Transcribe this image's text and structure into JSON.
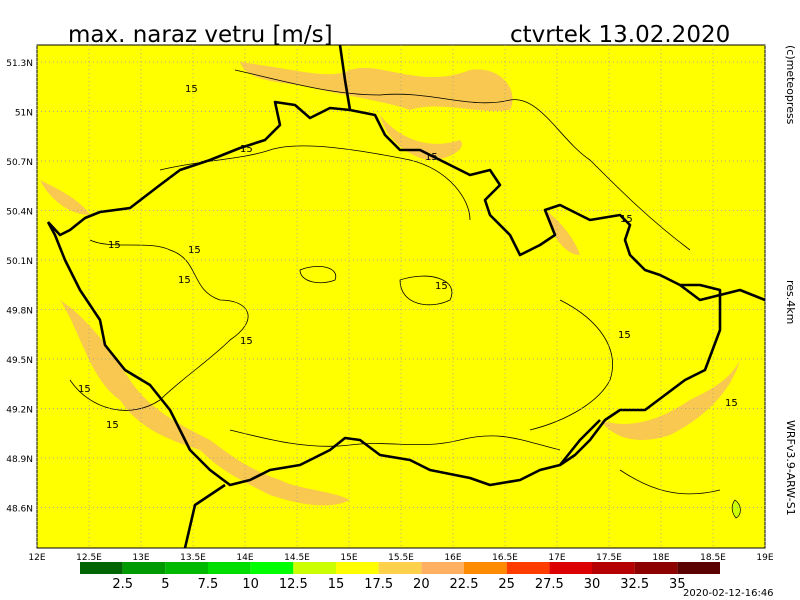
{
  "header": {
    "title": "max. naraz vetru [m/s]",
    "date": "ctvrtek 13.02.2020"
  },
  "side_labels": {
    "copyright": "(c)meteopress",
    "resolution": "res.4km",
    "model": "WRFv3.9-ARW-S1"
  },
  "axes": {
    "lat_labels": [
      "51.3N",
      "51N",
      "50.7N",
      "50.4N",
      "50.1N",
      "49.8N",
      "49.5N",
      "49.2N",
      "48.9N",
      "48.6N"
    ],
    "lon_labels": [
      "12E",
      "12.5E",
      "13E",
      "13.5E",
      "14E",
      "14.5E",
      "15E",
      "15.5E",
      "16E",
      "16.5E",
      "17E",
      "17.5E",
      "18E",
      "18.5E",
      "19E"
    ]
  },
  "contour_labels": [
    "15",
    "15",
    "15",
    "15",
    "15",
    "15",
    "15",
    "15",
    "15",
    "15",
    "15",
    "15",
    "15"
  ],
  "colorbar": {
    "labels": [
      "2.5",
      "5",
      "7.5",
      "10",
      "12.5",
      "15",
      "17.5",
      "20",
      "22.5",
      "25",
      "27.5",
      "30",
      "32.5",
      "35"
    ],
    "colors": [
      "#006400",
      "#009a00",
      "#00b900",
      "#00dd00",
      "#00ff00",
      "#ccff00",
      "#ffff00",
      "#ffd04a",
      "#ffb060",
      "#ff8c00",
      "#ff3c00",
      "#dc0000",
      "#b40000",
      "#8c0000",
      "#5a0000"
    ]
  },
  "timestamp": "2020-02-12-16:46"
}
